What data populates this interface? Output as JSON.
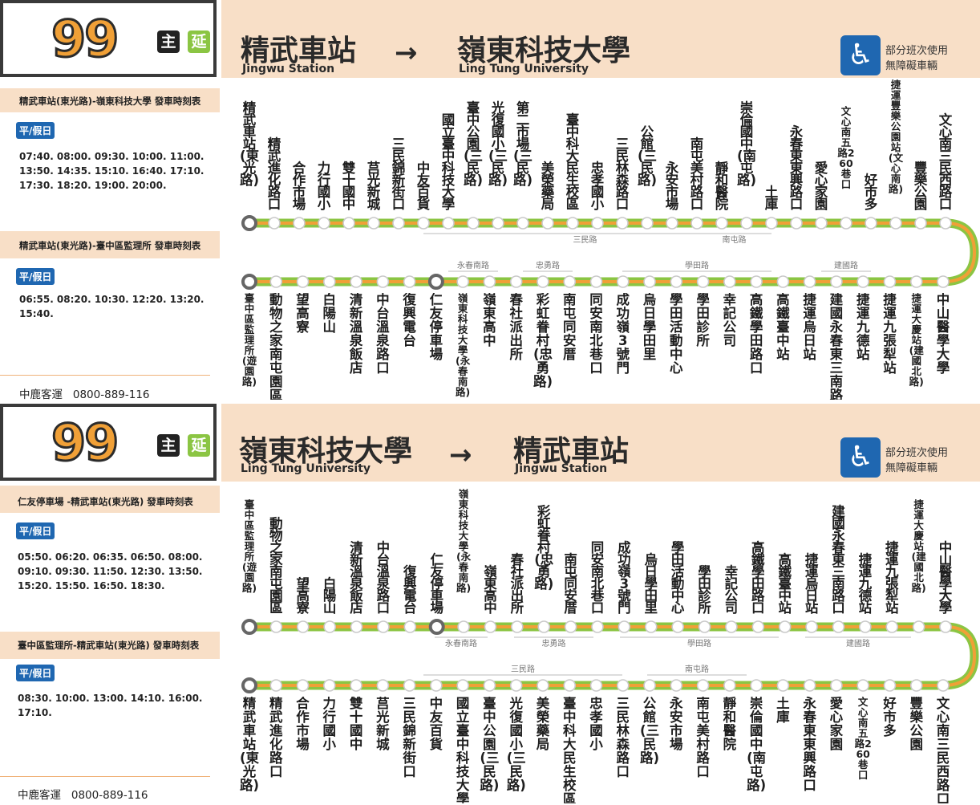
{
  "company": "中鹿客運",
  "phone": "0800-889-116",
  "route_number": "99",
  "badge_main": "主",
  "badge_ext": "延",
  "accessibility": {
    "icon": "wheelchair-icon",
    "line1": "部分班次使用",
    "line2": "無障礙車輛"
  },
  "colors": {
    "accent": "#f8dfc7",
    "route_green": "#8bc543",
    "route_orange": "#f0a037",
    "blue": "#1f67b1"
  },
  "panels": [
    {
      "from_zh": "精武車站",
      "from_en": "Jingwu Station",
      "to_zh": "嶺東科技大學",
      "to_en": "Ling Tung University",
      "arrow": "→",
      "schedules": [
        {
          "header": "精武車站(東光路)-嶺東科技大學  發車時刻表",
          "badge": "平/假日",
          "times": "07:40. 08:00. 09:30. 10:00. 11:00. 13:50. 14:35. 15:10. 16:40. 17:10. 17:30. 18:20. 19:00. 20:00."
        },
        {
          "header": "精武車站(東光路)-臺中區監理所  發車時刻表",
          "badge": "平/假日",
          "times": "06:55. 08:20. 10:30. 12:20. 13:20. 15:40."
        }
      ],
      "row_top": [
        "精武車站(東光路)",
        "精武進化路口",
        "合作市場",
        "力行國小",
        "雙十國中",
        "莒光新城",
        "三民錦新街口",
        "中友百貨",
        "國立臺中科技大學",
        "臺中公園(三民路)",
        "光復國小(三民路)",
        "第二市場(三民路)",
        "美榮藥局",
        "臺中科大民生校區",
        "忠孝國小",
        "三民林森路口",
        "公館(三民路)",
        "永安市場",
        "南屯美村路口",
        "靜和醫院",
        "崇倫國中(南屯路)",
        "土庫",
        "永春東東興路口",
        "愛心家園",
        "文心南五路260巷口",
        "好市多",
        "捷運豐樂公園站(文心南路)",
        "豐樂公園",
        "文心南三民西路口"
      ],
      "row_bottom": [
        "臺中區監理所(遊園路)",
        "動物之家南屯園區",
        "望高寮",
        "白陽山",
        "清新溫泉飯店",
        "中台溫泉路口",
        "復興電台",
        "仁友停車場",
        "嶺東科技大學(永春南路)",
        "嶺東高中",
        "春社派出所",
        "彩虹眷村(忠勇路)",
        "南屯同安厝",
        "同安南北巷口",
        "成功嶺3號門",
        "烏日學田里",
        "學田活動中心",
        "學田診所",
        "幸記公司",
        "高鐵學田路口",
        "高鐵臺中站",
        "捷運烏日站",
        "建國永春東三南路口",
        "捷運九德站",
        "捷運九張犁站",
        "捷運大慶站(建國北路)",
        "中山醫學大學"
      ],
      "road_labels": [
        {
          "text": "三民路",
          "row": "top"
        },
        {
          "text": "南屯路",
          "row": "top"
        },
        {
          "text": "永春南路",
          "row": "bottom"
        },
        {
          "text": "忠勇路",
          "row": "bottom"
        },
        {
          "text": "學田路",
          "row": "bottom"
        },
        {
          "text": "建國路",
          "row": "bottom"
        }
      ]
    },
    {
      "from_zh": "嶺東科技大學",
      "from_en": "Ling Tung University",
      "to_zh": "精武車站",
      "to_en": "Jingwu Station",
      "arrow": "→",
      "schedules": [
        {
          "header": "仁友停車場 -精武車站(東光路)  發車時刻表",
          "badge": "平/假日",
          "times": "05:50. 06:20. 06:35. 06:50. 08:00. 09:10. 09:30. 11:50. 12:30. 13:50. 15:20. 15:50. 16:50. 18:30."
        },
        {
          "header": "臺中區監理所-精武車站(東光路)  發車時刻表",
          "badge": "平/假日",
          "times": "08:30. 10:00. 13:00. 14:10. 16:00. 17:10."
        }
      ],
      "row_top": [
        "臺中區監理所(遊園路)",
        "動物之家南屯園區",
        "望高寮",
        "白陽山",
        "清新溫泉飯店",
        "中台溫泉路口",
        "復興電台",
        "仁友停車場",
        "嶺東科技大學(永春南路)",
        "嶺東高中",
        "春社派出所",
        "彩虹眷村(忠勇路)",
        "南屯同安厝",
        "同安南北巷口",
        "成功嶺3號門",
        "烏日學田里",
        "學田活動中心",
        "學田診所",
        "幸記公司",
        "高鐵學田路口",
        "高鐵臺中站",
        "捷運烏日站",
        "建國永春東三南路口",
        "捷運九德站",
        "捷運九張犁站",
        "捷運大慶站(建國北路)",
        "中山醫學大學"
      ],
      "row_bottom": [
        "精武車站(東光路)",
        "精武進化路口",
        "合作市場",
        "力行國小",
        "雙十國中",
        "莒光新城",
        "三民錦新街口",
        "中友百貨",
        "國立臺中科技大學",
        "臺中公園(三民路)",
        "光復國小(三民路)",
        "美榮藥局",
        "臺中科大民生校區",
        "忠孝國小",
        "三民林森路口",
        "公館(三民路)",
        "永安市場",
        "南屯美村路口",
        "靜和醫院",
        "崇倫國中(南屯路)",
        "土庫",
        "永春東東興路口",
        "愛心家園",
        "文心南五路260巷口",
        "好市多",
        "豐樂公園",
        "文心南三民西路口"
      ],
      "road_labels": [
        {
          "text": "永春南路",
          "row": "top"
        },
        {
          "text": "忠勇路",
          "row": "top"
        },
        {
          "text": "學田路",
          "row": "top"
        },
        {
          "text": "建國路",
          "row": "top"
        },
        {
          "text": "三民路",
          "row": "bottom"
        },
        {
          "text": "南屯路",
          "row": "bottom"
        }
      ]
    }
  ]
}
